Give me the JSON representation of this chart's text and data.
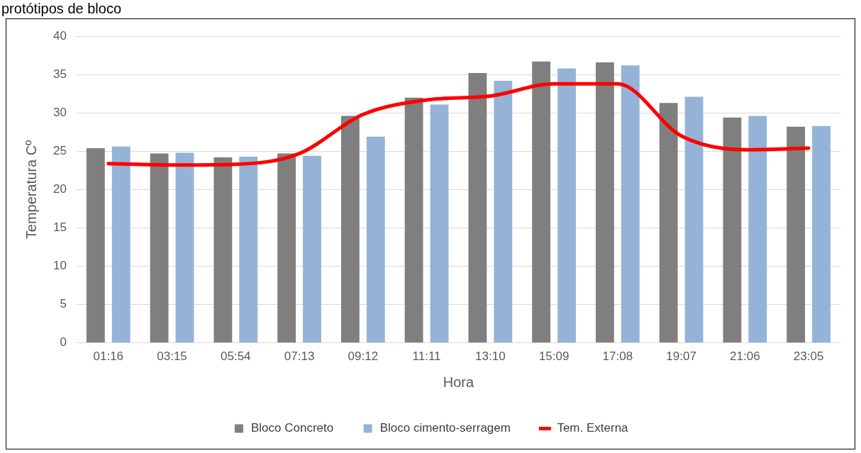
{
  "chart_data": {
    "type": "bar",
    "title": "protótipos de bloco",
    "xlabel": "Hora",
    "ylabel": "Temperatura Cº",
    "categories": [
      "01:16",
      "03:15",
      "05:54",
      "07:13",
      "09:12",
      "11:11",
      "13:10",
      "15:09",
      "17:08",
      "19:07",
      "21:06",
      "23:05"
    ],
    "series": [
      {
        "name": "Bloco Concreto",
        "color": "#7f7f7f",
        "values": [
          25.4,
          24.7,
          24.2,
          24.7,
          29.6,
          32.0,
          35.2,
          36.7,
          36.6,
          31.3,
          29.4,
          28.2
        ]
      },
      {
        "name": "Bloco cimento-serragem",
        "color": "#95b3d7",
        "values": [
          25.6,
          24.8,
          24.3,
          24.4,
          26.9,
          31.1,
          34.2,
          35.8,
          36.2,
          32.1,
          29.6,
          28.3
        ]
      },
      {
        "name": "Tem. Externa",
        "type": "line",
        "color": "#ff0000",
        "values": [
          23.4,
          23.2,
          23.3,
          24.7,
          29.8,
          31.7,
          32.2,
          33.8,
          33.8,
          27.0,
          25.2,
          25.4
        ]
      }
    ],
    "ylim": [
      0,
      40
    ],
    "yticks": [
      0,
      5,
      10,
      15,
      20,
      25,
      30,
      35,
      40
    ],
    "grid": "y",
    "legend": "bottom",
    "marker": "none"
  }
}
